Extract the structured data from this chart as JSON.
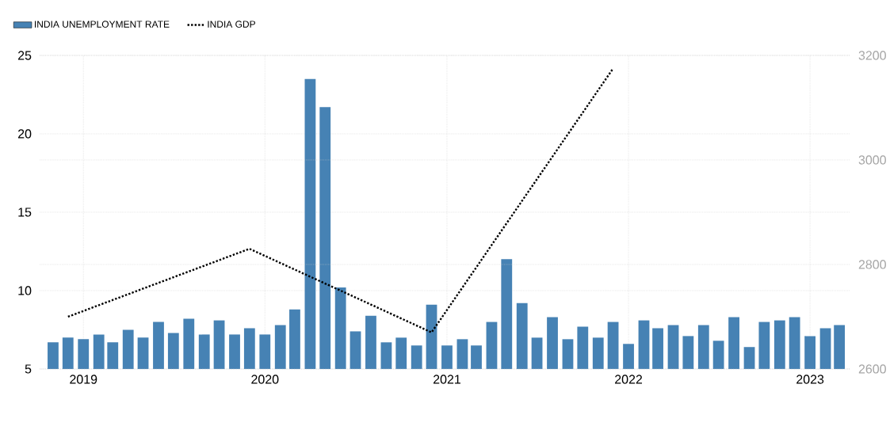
{
  "chart_data": {
    "type": "bar",
    "x": [
      "2018-11",
      "2018-12",
      "2019-01",
      "2019-02",
      "2019-03",
      "2019-04",
      "2019-05",
      "2019-06",
      "2019-07",
      "2019-08",
      "2019-09",
      "2019-10",
      "2019-11",
      "2019-12",
      "2020-01",
      "2020-02",
      "2020-03",
      "2020-04",
      "2020-05",
      "2020-06",
      "2020-07",
      "2020-08",
      "2020-09",
      "2020-10",
      "2020-11",
      "2020-12",
      "2021-01",
      "2021-02",
      "2021-03",
      "2021-04",
      "2021-05",
      "2021-06",
      "2021-07",
      "2021-08",
      "2021-09",
      "2021-10",
      "2021-11",
      "2021-12",
      "2022-01",
      "2022-02",
      "2022-03",
      "2022-04",
      "2022-05",
      "2022-06",
      "2022-07",
      "2022-08",
      "2022-09",
      "2022-10",
      "2022-11",
      "2022-12",
      "2023-01",
      "2023-02",
      "2023-03"
    ],
    "series": [
      {
        "name": "INDIA UNEMPLOYMENT RATE",
        "color": "#4682b4",
        "values": [
          6.7,
          7.0,
          6.9,
          7.2,
          6.7,
          7.5,
          7.0,
          8.0,
          7.3,
          8.2,
          7.2,
          8.1,
          7.2,
          7.6,
          7.2,
          7.8,
          8.8,
          23.5,
          21.7,
          10.2,
          7.4,
          8.4,
          6.7,
          7.0,
          6.5,
          9.1,
          6.5,
          6.9,
          6.5,
          8.0,
          12.0,
          9.2,
          7.0,
          8.3,
          6.9,
          7.7,
          7.0,
          8.0,
          6.6,
          8.1,
          7.6,
          7.8,
          7.1,
          7.8,
          6.8,
          8.3,
          6.4,
          8.0,
          8.1,
          8.3,
          7.1,
          7.6,
          7.8
        ]
      },
      {
        "name": "INDIA GDP",
        "type": "line",
        "axis": "y2",
        "color": "#000000",
        "line_style": "dotted",
        "x": [
          "2018-12",
          "2019-12",
          "2020-12",
          "2021-12"
        ],
        "values": [
          2700,
          2830,
          2670,
          3175
        ]
      }
    ],
    "xlim": [
      "2018-10-05",
      "2023-03-23"
    ],
    "xticks": [
      "2019",
      "2020",
      "2021",
      "2022",
      "2023"
    ],
    "ylim": [
      5,
      25
    ],
    "yticks": [
      5,
      10,
      15,
      20,
      25
    ],
    "y2lim": [
      2600,
      3200
    ],
    "y2ticks": [
      2600,
      2800,
      3000,
      3200
    ],
    "grid": true,
    "legend": "top left"
  }
}
